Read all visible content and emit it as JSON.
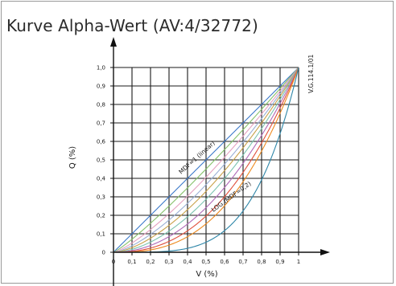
{
  "window": {
    "title": "Kurve Alpha-Wert (AV:4/32772)"
  },
  "chart_data": {
    "type": "line",
    "title": "Kurve Alpha-Wert (AV:4/32772)",
    "xlabel": "V (%)",
    "ylabel": "Q (%)",
    "xlim": [
      0,
      1
    ],
    "ylim": [
      0,
      1
    ],
    "grid": true,
    "x_ticks": [
      "0",
      "0,1",
      "0,2",
      "0,3",
      "0,4",
      "0,5",
      "0,6",
      "0,7",
      "0,8",
      "0,9",
      "1"
    ],
    "y_ticks": [
      "0",
      "0,1",
      "0,2",
      "0,3",
      "0,4",
      "0,5",
      "0,6",
      "0,7",
      "0,8",
      "0,9",
      "1,0"
    ],
    "annotations": [
      {
        "text": "MDF=1 (linear)",
        "x": 0.42,
        "y": 0.47
      },
      {
        "text": "LOG (MDF=0,2)",
        "x": 0.58,
        "y": 0.25
      },
      {
        "text": "V.G.114.1/01",
        "x": 1.02,
        "y": 0.97
      }
    ],
    "series": [
      {
        "color": "#3a78c9",
        "exponent": 1.0
      },
      {
        "color": "#86c16a",
        "exponent": 1.15
      },
      {
        "color": "#e5a1c0",
        "exponent": 1.3
      },
      {
        "color": "#9bb0d6",
        "exponent": 1.45
      },
      {
        "color": "#c9a24a",
        "exponent": 1.6
      },
      {
        "color": "#7cc4b0",
        "exponent": 1.8
      },
      {
        "color": "#b06ab8",
        "exponent": 2.05
      },
      {
        "color": "#e0503c",
        "exponent": 2.35
      },
      {
        "color": "#ee8a1f",
        "exponent": 2.7
      },
      {
        "color": "#2e86a8",
        "exponent": 4.2
      }
    ]
  }
}
